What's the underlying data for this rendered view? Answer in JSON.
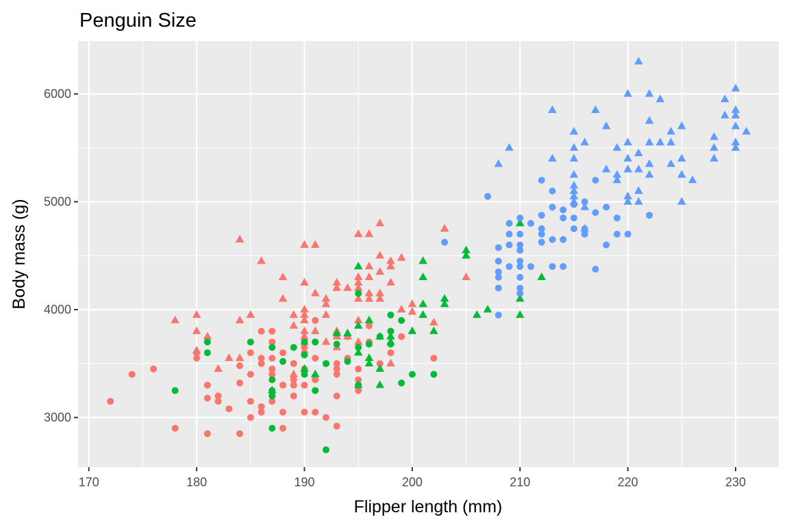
{
  "chart_data": {
    "type": "scatter",
    "title": "Penguin Size",
    "xlabel": "Flipper length (mm)",
    "ylabel": "Body mass (g)",
    "xlim": [
      169,
      234
    ],
    "ylim": [
      2540,
      6490
    ],
    "x_ticks": [
      "170",
      "180",
      "190",
      "200",
      "210",
      "220",
      "230"
    ],
    "y_ticks": [
      "3000",
      "4000",
      "5000",
      "6000"
    ],
    "grid": true,
    "legend": "none",
    "series": [
      {
        "color": "#F8766D",
        "shape": "circle",
        "points": [
          [
            172,
            3150
          ],
          [
            174,
            3400
          ],
          [
            176,
            3450
          ],
          [
            178,
            2900
          ],
          [
            180,
            3550
          ],
          [
            180,
            3600
          ],
          [
            181,
            3300
          ],
          [
            181,
            3180
          ],
          [
            181,
            2850
          ],
          [
            182,
            3200
          ],
          [
            182,
            3150
          ],
          [
            183,
            3080
          ],
          [
            184,
            3480
          ],
          [
            184,
            3320
          ],
          [
            184,
            2850
          ],
          [
            185,
            3600
          ],
          [
            185,
            3400
          ],
          [
            185,
            3150
          ],
          [
            185,
            3000
          ],
          [
            186,
            3800
          ],
          [
            186,
            3550
          ],
          [
            186,
            3500
          ],
          [
            186,
            3100
          ],
          [
            186,
            3050
          ],
          [
            187,
            3800
          ],
          [
            187,
            3700
          ],
          [
            187,
            3550
          ],
          [
            187,
            3450
          ],
          [
            187,
            3400
          ],
          [
            187,
            3150
          ],
          [
            188,
            3600
          ],
          [
            188,
            3300
          ],
          [
            188,
            3050
          ],
          [
            188,
            2900
          ],
          [
            189,
            3500
          ],
          [
            189,
            3350
          ],
          [
            189,
            3300
          ],
          [
            189,
            3200
          ],
          [
            190,
            3700
          ],
          [
            190,
            3650
          ],
          [
            190,
            3600
          ],
          [
            190,
            3450
          ],
          [
            190,
            3300
          ],
          [
            190,
            3050
          ],
          [
            191,
            3900
          ],
          [
            191,
            3700
          ],
          [
            191,
            3550
          ],
          [
            191,
            3350
          ],
          [
            191,
            3250
          ],
          [
            191,
            3050
          ],
          [
            192,
            3500
          ],
          [
            192,
            3000
          ],
          [
            193,
            3500
          ],
          [
            193,
            3450
          ],
          [
            193,
            3400
          ],
          [
            193,
            3200
          ],
          [
            193,
            2920
          ],
          [
            194,
            3750
          ],
          [
            194,
            3550
          ],
          [
            195,
            3450
          ],
          [
            195,
            3350
          ],
          [
            195,
            3300
          ],
          [
            195,
            3250
          ],
          [
            196,
            3850
          ],
          [
            196,
            3700
          ],
          [
            197,
            3500
          ],
          [
            198,
            3800
          ],
          [
            198,
            3600
          ],
          [
            199,
            3750
          ],
          [
            202,
            3550
          ]
        ]
      },
      {
        "color": "#F8766D",
        "shape": "triangle",
        "points": [
          [
            178,
            3900
          ],
          [
            180,
            3950
          ],
          [
            180,
            3800
          ],
          [
            180,
            3620
          ],
          [
            181,
            3750
          ],
          [
            182,
            3450
          ],
          [
            183,
            3550
          ],
          [
            184,
            4650
          ],
          [
            184,
            3900
          ],
          [
            184,
            3550
          ],
          [
            185,
            3950
          ],
          [
            186,
            4450
          ],
          [
            188,
            4300
          ],
          [
            188,
            4100
          ],
          [
            189,
            3950
          ],
          [
            189,
            3850
          ],
          [
            189,
            3400
          ],
          [
            190,
            4600
          ],
          [
            190,
            4250
          ],
          [
            190,
            4000
          ],
          [
            190,
            3950
          ],
          [
            190,
            3900
          ],
          [
            190,
            3800
          ],
          [
            190,
            3750
          ],
          [
            190,
            3700
          ],
          [
            191,
            4600
          ],
          [
            191,
            4150
          ],
          [
            191,
            3800
          ],
          [
            192,
            4100
          ],
          [
            192,
            4050
          ],
          [
            192,
            3950
          ],
          [
            192,
            3700
          ],
          [
            193,
            4250
          ],
          [
            193,
            4200
          ],
          [
            193,
            3800
          ],
          [
            193,
            3750
          ],
          [
            193,
            3650
          ],
          [
            194,
            4200
          ],
          [
            194,
            3750
          ],
          [
            195,
            4700
          ],
          [
            195,
            4300
          ],
          [
            195,
            4250
          ],
          [
            195,
            4200
          ],
          [
            195,
            4100
          ],
          [
            195,
            3900
          ],
          [
            195,
            3700
          ],
          [
            196,
            4700
          ],
          [
            196,
            4400
          ],
          [
            196,
            4300
          ],
          [
            196,
            4150
          ],
          [
            196,
            4100
          ],
          [
            197,
            4800
          ],
          [
            197,
            4500
          ],
          [
            197,
            4350
          ],
          [
            197,
            4150
          ],
          [
            197,
            4100
          ],
          [
            198,
            4450
          ],
          [
            198,
            4400
          ],
          [
            198,
            4250
          ],
          [
            198,
            3500
          ],
          [
            199,
            4480
          ],
          [
            199,
            4000
          ],
          [
            200,
            4050
          ],
          [
            200,
            3980
          ],
          [
            201,
            3950
          ],
          [
            202,
            3880
          ],
          [
            203,
            4750
          ],
          [
            205,
            4300
          ]
        ]
      },
      {
        "color": "#00BA38",
        "shape": "circle",
        "points": [
          [
            178,
            3250
          ],
          [
            181,
            3700
          ],
          [
            181,
            3600
          ],
          [
            185,
            3700
          ],
          [
            187,
            3650
          ],
          [
            187,
            3350
          ],
          [
            187,
            3250
          ],
          [
            187,
            3200
          ],
          [
            187,
            2900
          ],
          [
            188,
            3520
          ],
          [
            189,
            3650
          ],
          [
            190,
            3700
          ],
          [
            190,
            3580
          ],
          [
            190,
            3400
          ],
          [
            191,
            3700
          ],
          [
            191,
            3250
          ],
          [
            192,
            3500
          ],
          [
            192,
            2700
          ],
          [
            193,
            3680
          ],
          [
            194,
            3520
          ],
          [
            195,
            4150
          ],
          [
            195,
            3650
          ],
          [
            195,
            3300
          ],
          [
            196,
            3680
          ],
          [
            197,
            3750
          ],
          [
            198,
            3950
          ],
          [
            198,
            3800
          ],
          [
            198,
            3680
          ],
          [
            199,
            3900
          ],
          [
            199,
            3320
          ],
          [
            200,
            3400
          ],
          [
            202,
            3400
          ]
        ]
      },
      {
        "color": "#00BA38",
        "shape": "triangle",
        "points": [
          [
            187,
            3250
          ],
          [
            190,
            3450
          ],
          [
            191,
            3400
          ],
          [
            193,
            3780
          ],
          [
            194,
            3780
          ],
          [
            195,
            4400
          ],
          [
            195,
            3850
          ],
          [
            195,
            3600
          ],
          [
            195,
            3300
          ],
          [
            196,
            3900
          ],
          [
            196,
            3550
          ],
          [
            196,
            3500
          ],
          [
            197,
            3750
          ],
          [
            197,
            3450
          ],
          [
            197,
            3300
          ],
          [
            198,
            3750
          ],
          [
            198,
            3700
          ],
          [
            200,
            3800
          ],
          [
            201,
            4450
          ],
          [
            201,
            4300
          ],
          [
            201,
            4050
          ],
          [
            201,
            3950
          ],
          [
            202,
            3800
          ],
          [
            203,
            4100
          ],
          [
            203,
            4050
          ],
          [
            205,
            4550
          ],
          [
            205,
            4500
          ],
          [
            206,
            3950
          ],
          [
            207,
            4000
          ],
          [
            210,
            4800
          ],
          [
            210,
            4100
          ],
          [
            210,
            3950
          ],
          [
            212,
            4300
          ]
        ]
      },
      {
        "color": "#619CFF",
        "shape": "circle",
        "points": [
          [
            203,
            4625
          ],
          [
            207,
            5050
          ],
          [
            208,
            4575
          ],
          [
            208,
            4450
          ],
          [
            208,
            4350
          ],
          [
            208,
            4300
          ],
          [
            208,
            4200
          ],
          [
            208,
            3950
          ],
          [
            209,
            4800
          ],
          [
            209,
            4700
          ],
          [
            209,
            4600
          ],
          [
            209,
            4400
          ],
          [
            210,
            4850
          ],
          [
            210,
            4700
          ],
          [
            210,
            4600
          ],
          [
            210,
            4550
          ],
          [
            210,
            4450
          ],
          [
            210,
            4400
          ],
          [
            210,
            4300
          ],
          [
            210,
            4200
          ],
          [
            210,
            4150
          ],
          [
            211,
            4800
          ],
          [
            211,
            4400
          ],
          [
            212,
            5200
          ],
          [
            212,
            4875
          ],
          [
            212,
            4750
          ],
          [
            212,
            4700
          ],
          [
            212,
            4625
          ],
          [
            213,
            5100
          ],
          [
            213,
            4950
          ],
          [
            213,
            4650
          ],
          [
            213,
            4400
          ],
          [
            214,
            4925
          ],
          [
            214,
            4850
          ],
          [
            214,
            4650
          ],
          [
            214,
            4400
          ],
          [
            215,
            4975
          ],
          [
            215,
            4850
          ],
          [
            215,
            4750
          ],
          [
            216,
            5000
          ],
          [
            216,
            4750
          ],
          [
            216,
            4700
          ],
          [
            217,
            5200
          ],
          [
            217,
            4900
          ],
          [
            217,
            4375
          ],
          [
            218,
            4600
          ],
          [
            218,
            4950
          ],
          [
            219,
            4850
          ],
          [
            219,
            4700
          ],
          [
            220,
            4700
          ],
          [
            222,
            4875
          ]
        ]
      },
      {
        "color": "#619CFF",
        "shape": "triangle",
        "points": [
          [
            208,
            5350
          ],
          [
            209,
            5500
          ],
          [
            213,
            5850
          ],
          [
            213,
            5400
          ],
          [
            215,
            5650
          ],
          [
            215,
            5500
          ],
          [
            215,
            5400
          ],
          [
            215,
            5250
          ],
          [
            215,
            5150
          ],
          [
            215,
            5100
          ],
          [
            215,
            5050
          ],
          [
            215,
            5000
          ],
          [
            216,
            5550
          ],
          [
            216,
            4950
          ],
          [
            216,
            4750
          ],
          [
            217,
            5850
          ],
          [
            218,
            5700
          ],
          [
            218,
            5300
          ],
          [
            219,
            5500
          ],
          [
            219,
            5250
          ],
          [
            219,
            5200
          ],
          [
            220,
            6000
          ],
          [
            220,
            5550
          ],
          [
            220,
            5400
          ],
          [
            220,
            5300
          ],
          [
            220,
            5050
          ],
          [
            220,
            5000
          ],
          [
            221,
            6300
          ],
          [
            221,
            5450
          ],
          [
            221,
            5300
          ],
          [
            221,
            5100
          ],
          [
            221,
            5000
          ],
          [
            222,
            6000
          ],
          [
            222,
            5750
          ],
          [
            222,
            5550
          ],
          [
            222,
            5350
          ],
          [
            222,
            5250
          ],
          [
            223,
            5950
          ],
          [
            223,
            5550
          ],
          [
            224,
            5650
          ],
          [
            224,
            5550
          ],
          [
            224,
            5350
          ],
          [
            225,
            5700
          ],
          [
            225,
            5400
          ],
          [
            225,
            5250
          ],
          [
            225,
            5000
          ],
          [
            226,
            5200
          ],
          [
            228,
            5600
          ],
          [
            228,
            5500
          ],
          [
            228,
            5400
          ],
          [
            229,
            5950
          ],
          [
            229,
            5800
          ],
          [
            230,
            6050
          ],
          [
            230,
            5850
          ],
          [
            230,
            5800
          ],
          [
            230,
            5700
          ],
          [
            230,
            5550
          ],
          [
            230,
            5500
          ],
          [
            231,
            5650
          ]
        ]
      }
    ]
  }
}
